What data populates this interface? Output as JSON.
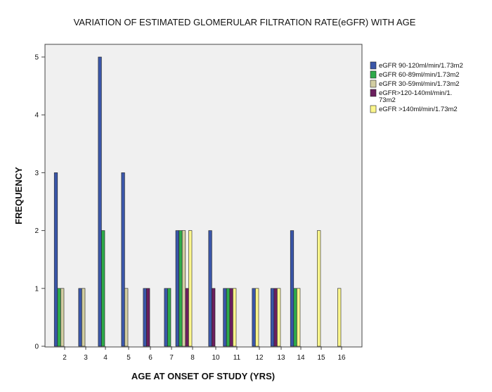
{
  "chart_data": {
    "type": "bar",
    "title": "VARIATION OF ESTIMATED GLOMERULAR FILTRATION RATE(eGFR) WITH AGE",
    "xlabel": "AGE AT ONSET OF STUDY (YRS)",
    "ylabel": "FREQUENCY",
    "ylim": [
      0,
      5
    ],
    "yticks": [
      "0",
      "1",
      "2",
      "3",
      "4",
      "5"
    ],
    "categories": [
      "2",
      "3",
      "4",
      "5",
      "6",
      "7",
      "8",
      "10",
      "11",
      "12",
      "13",
      "14",
      "15",
      "16"
    ],
    "legend_position": "right",
    "grid": false,
    "series": [
      {
        "name": "eGFR 90-120ml/min/1.73m2",
        "color": "#3a56a8",
        "values": [
          3,
          1,
          5,
          3,
          1,
          1,
          2,
          2,
          1,
          1,
          1,
          2,
          0,
          0
        ]
      },
      {
        "name": "eGFR 60-89ml/min/1.73m2",
        "color": "#2eaa4a",
        "values": [
          1,
          0,
          2,
          0,
          0,
          1,
          2,
          0,
          1,
          0,
          0,
          1,
          0,
          0
        ]
      },
      {
        "name": "eGFR 30-59ml/min/1.73m2",
        "color": "#d2cea2",
        "values": [
          1,
          1,
          0,
          1,
          0,
          0,
          2,
          0,
          0,
          0,
          0,
          0,
          0,
          0
        ]
      },
      {
        "name": "eGFR>120-140ml/min/1.73m2",
        "legend_lines": [
          "eGFR>120-140ml/min/1.",
          "73m2"
        ],
        "color": "#6b1f5e",
        "values": [
          0,
          0,
          0,
          0,
          1,
          0,
          1,
          1,
          1,
          0,
          1,
          0,
          0,
          0
        ]
      },
      {
        "name": "eGFR >140ml/min/1.73m2",
        "color": "#fbf68c",
        "values": [
          0,
          0,
          0,
          0,
          0,
          0,
          2,
          0,
          1,
          1,
          1,
          1,
          2,
          1
        ]
      }
    ]
  }
}
